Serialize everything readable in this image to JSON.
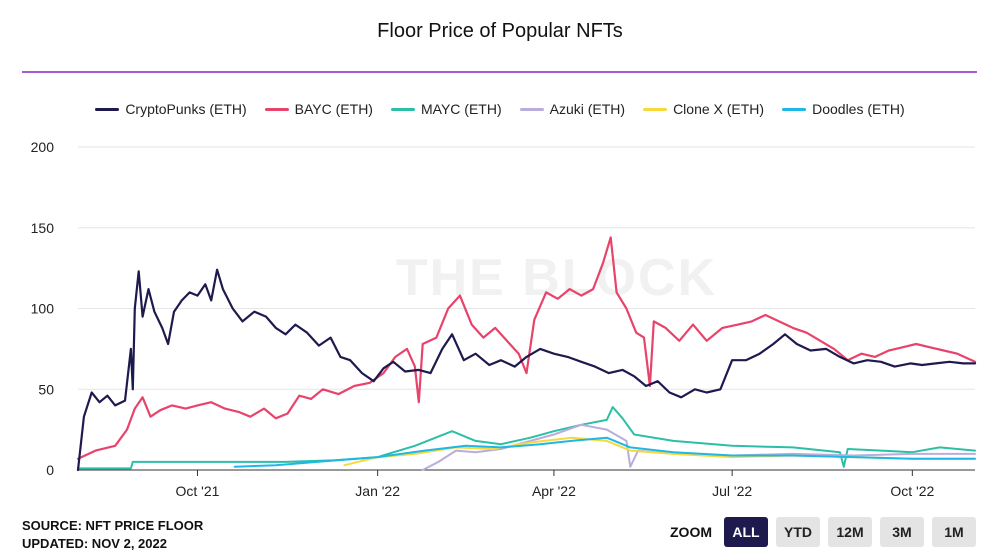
{
  "header": {
    "title": "Floor Price of Popular NFTs"
  },
  "footer": {
    "source": "SOURCE: NFT PRICE FLOOR",
    "updated": "UPDATED: NOV 2, 2022"
  },
  "zoom": {
    "label": "ZOOM",
    "buttons": [
      "ALL",
      "YTD",
      "12M",
      "3M",
      "1M"
    ],
    "active": "ALL"
  },
  "watermark": "THE BLOCK",
  "colors": {
    "accent_rule": "#a65bd3",
    "active_button": "#1e1a4d"
  },
  "chart_data": {
    "type": "line",
    "title": "Floor Price of Popular NFTs",
    "xlabel": "",
    "ylabel": "",
    "x_range": [
      "2021-08-01",
      "2022-11-02"
    ],
    "ylim": [
      0,
      200
    ],
    "y_ticks": [
      0,
      50,
      100,
      150,
      200
    ],
    "x_ticks": [
      {
        "date": "2021-10-01",
        "label": "Oct '21"
      },
      {
        "date": "2022-01-01",
        "label": "Jan '22"
      },
      {
        "date": "2022-04-01",
        "label": "Apr '22"
      },
      {
        "date": "2022-07-01",
        "label": "Jul '22"
      },
      {
        "date": "2022-10-01",
        "label": "Oct '22"
      }
    ],
    "grid": "horizontal",
    "legend_position": "top-center",
    "series": [
      {
        "name": "CryptoPunks (ETH)",
        "color": "#1e1a4d",
        "points": [
          [
            "2021-08-01",
            0
          ],
          [
            "2021-08-04",
            33
          ],
          [
            "2021-08-08",
            48
          ],
          [
            "2021-08-12",
            42
          ],
          [
            "2021-08-16",
            46
          ],
          [
            "2021-08-20",
            40
          ],
          [
            "2021-08-25",
            43
          ],
          [
            "2021-08-28",
            75
          ],
          [
            "2021-08-29",
            50
          ],
          [
            "2021-08-30",
            100
          ],
          [
            "2021-09-01",
            123
          ],
          [
            "2021-09-03",
            95
          ],
          [
            "2021-09-06",
            112
          ],
          [
            "2021-09-09",
            98
          ],
          [
            "2021-09-13",
            88
          ],
          [
            "2021-09-16",
            78
          ],
          [
            "2021-09-19",
            98
          ],
          [
            "2021-09-23",
            105
          ],
          [
            "2021-09-27",
            110
          ],
          [
            "2021-10-01",
            108
          ],
          [
            "2021-10-05",
            115
          ],
          [
            "2021-10-08",
            105
          ],
          [
            "2021-10-11",
            124
          ],
          [
            "2021-10-14",
            112
          ],
          [
            "2021-10-19",
            100
          ],
          [
            "2021-10-24",
            92
          ],
          [
            "2021-10-30",
            98
          ],
          [
            "2021-11-05",
            95
          ],
          [
            "2021-11-10",
            88
          ],
          [
            "2021-11-15",
            84
          ],
          [
            "2021-11-20",
            90
          ],
          [
            "2021-11-26",
            85
          ],
          [
            "2021-12-02",
            77
          ],
          [
            "2021-12-08",
            82
          ],
          [
            "2021-12-13",
            70
          ],
          [
            "2021-12-18",
            68
          ],
          [
            "2021-12-24",
            60
          ],
          [
            "2021-12-30",
            55
          ],
          [
            "2022-01-04",
            63
          ],
          [
            "2022-01-09",
            67
          ],
          [
            "2022-01-15",
            61
          ],
          [
            "2022-01-22",
            62
          ],
          [
            "2022-01-28",
            60
          ],
          [
            "2022-02-03",
            75
          ],
          [
            "2022-02-08",
            84
          ],
          [
            "2022-02-14",
            68
          ],
          [
            "2022-02-20",
            72
          ],
          [
            "2022-02-27",
            65
          ],
          [
            "2022-03-05",
            68
          ],
          [
            "2022-03-12",
            64
          ],
          [
            "2022-03-18",
            70
          ],
          [
            "2022-03-25",
            75
          ],
          [
            "2022-04-01",
            72
          ],
          [
            "2022-04-08",
            70
          ],
          [
            "2022-04-15",
            67
          ],
          [
            "2022-04-22",
            64
          ],
          [
            "2022-04-29",
            60
          ],
          [
            "2022-05-06",
            62
          ],
          [
            "2022-05-12",
            58
          ],
          [
            "2022-05-18",
            52
          ],
          [
            "2022-05-24",
            55
          ],
          [
            "2022-05-30",
            48
          ],
          [
            "2022-06-05",
            45
          ],
          [
            "2022-06-12",
            50
          ],
          [
            "2022-06-18",
            48
          ],
          [
            "2022-06-25",
            50
          ],
          [
            "2022-07-01",
            68
          ],
          [
            "2022-07-08",
            68
          ],
          [
            "2022-07-15",
            72
          ],
          [
            "2022-07-22",
            78
          ],
          [
            "2022-07-28",
            84
          ],
          [
            "2022-08-03",
            78
          ],
          [
            "2022-08-10",
            74
          ],
          [
            "2022-08-18",
            75
          ],
          [
            "2022-08-25",
            70
          ],
          [
            "2022-09-01",
            66
          ],
          [
            "2022-09-08",
            68
          ],
          [
            "2022-09-15",
            67
          ],
          [
            "2022-09-22",
            64
          ],
          [
            "2022-09-30",
            66
          ],
          [
            "2022-10-06",
            65
          ],
          [
            "2022-10-13",
            66
          ],
          [
            "2022-10-20",
            67
          ],
          [
            "2022-10-27",
            66
          ],
          [
            "2022-11-02",
            66
          ]
        ]
      },
      {
        "name": "BAYC (ETH)",
        "color": "#e8436a",
        "points": [
          [
            "2021-08-01",
            7
          ],
          [
            "2021-08-10",
            12
          ],
          [
            "2021-08-20",
            15
          ],
          [
            "2021-08-26",
            25
          ],
          [
            "2021-08-30",
            38
          ],
          [
            "2021-09-03",
            45
          ],
          [
            "2021-09-07",
            33
          ],
          [
            "2021-09-12",
            37
          ],
          [
            "2021-09-18",
            40
          ],
          [
            "2021-09-25",
            38
          ],
          [
            "2021-10-01",
            40
          ],
          [
            "2021-10-08",
            42
          ],
          [
            "2021-10-15",
            38
          ],
          [
            "2021-10-22",
            36
          ],
          [
            "2021-10-28",
            33
          ],
          [
            "2021-11-04",
            38
          ],
          [
            "2021-11-10",
            32
          ],
          [
            "2021-11-16",
            35
          ],
          [
            "2021-11-22",
            46
          ],
          [
            "2021-11-28",
            44
          ],
          [
            "2021-12-04",
            50
          ],
          [
            "2021-12-12",
            47
          ],
          [
            "2021-12-20",
            52
          ],
          [
            "2021-12-28",
            54
          ],
          [
            "2022-01-04",
            60
          ],
          [
            "2022-01-10",
            70
          ],
          [
            "2022-01-16",
            75
          ],
          [
            "2022-01-20",
            64
          ],
          [
            "2022-01-22",
            42
          ],
          [
            "2022-01-24",
            78
          ],
          [
            "2022-01-31",
            82
          ],
          [
            "2022-02-06",
            100
          ],
          [
            "2022-02-12",
            108
          ],
          [
            "2022-02-18",
            90
          ],
          [
            "2022-02-24",
            82
          ],
          [
            "2022-03-02",
            88
          ],
          [
            "2022-03-08",
            80
          ],
          [
            "2022-03-14",
            72
          ],
          [
            "2022-03-18",
            60
          ],
          [
            "2022-03-22",
            93
          ],
          [
            "2022-03-28",
            110
          ],
          [
            "2022-04-03",
            106
          ],
          [
            "2022-04-09",
            112
          ],
          [
            "2022-04-15",
            108
          ],
          [
            "2022-04-21",
            112
          ],
          [
            "2022-04-26",
            128
          ],
          [
            "2022-04-30",
            144
          ],
          [
            "2022-05-03",
            110
          ],
          [
            "2022-05-08",
            100
          ],
          [
            "2022-05-13",
            85
          ],
          [
            "2022-05-17",
            82
          ],
          [
            "2022-05-20",
            52
          ],
          [
            "2022-05-22",
            92
          ],
          [
            "2022-05-28",
            88
          ],
          [
            "2022-06-04",
            80
          ],
          [
            "2022-06-11",
            90
          ],
          [
            "2022-06-18",
            80
          ],
          [
            "2022-06-26",
            88
          ],
          [
            "2022-07-04",
            90
          ],
          [
            "2022-07-11",
            92
          ],
          [
            "2022-07-18",
            96
          ],
          [
            "2022-07-25",
            92
          ],
          [
            "2022-08-01",
            88
          ],
          [
            "2022-08-08",
            85
          ],
          [
            "2022-08-15",
            80
          ],
          [
            "2022-08-22",
            75
          ],
          [
            "2022-08-29",
            68
          ],
          [
            "2022-09-05",
            72
          ],
          [
            "2022-09-12",
            70
          ],
          [
            "2022-09-19",
            74
          ],
          [
            "2022-09-26",
            76
          ],
          [
            "2022-10-03",
            78
          ],
          [
            "2022-10-10",
            76
          ],
          [
            "2022-10-17",
            74
          ],
          [
            "2022-10-24",
            72
          ],
          [
            "2022-11-02",
            67
          ]
        ]
      },
      {
        "name": "MAYC (ETH)",
        "color": "#2bbfa6",
        "points": [
          [
            "2021-08-01",
            1
          ],
          [
            "2021-08-28",
            1
          ],
          [
            "2021-08-29",
            5
          ],
          [
            "2021-09-30",
            5
          ],
          [
            "2021-11-15",
            5
          ],
          [
            "2021-12-10",
            6
          ],
          [
            "2022-01-01",
            8
          ],
          [
            "2022-01-20",
            15
          ],
          [
            "2022-02-08",
            24
          ],
          [
            "2022-02-20",
            18
          ],
          [
            "2022-03-05",
            16
          ],
          [
            "2022-03-20",
            20
          ],
          [
            "2022-04-01",
            24
          ],
          [
            "2022-04-15",
            28
          ],
          [
            "2022-04-28",
            31
          ],
          [
            "2022-05-01",
            39
          ],
          [
            "2022-05-06",
            32
          ],
          [
            "2022-05-12",
            22
          ],
          [
            "2022-06-01",
            18
          ],
          [
            "2022-07-01",
            15
          ],
          [
            "2022-08-01",
            14
          ],
          [
            "2022-08-25",
            11
          ],
          [
            "2022-08-27",
            2
          ],
          [
            "2022-08-29",
            13
          ],
          [
            "2022-09-15",
            12
          ],
          [
            "2022-10-01",
            11
          ],
          [
            "2022-10-15",
            14
          ],
          [
            "2022-11-02",
            12
          ]
        ]
      },
      {
        "name": "Azuki (ETH)",
        "color": "#b9addb",
        "points": [
          [
            "2022-01-24",
            0
          ],
          [
            "2022-02-01",
            5
          ],
          [
            "2022-02-10",
            12
          ],
          [
            "2022-02-20",
            11
          ],
          [
            "2022-03-05",
            13
          ],
          [
            "2022-03-20",
            18
          ],
          [
            "2022-04-01",
            22
          ],
          [
            "2022-04-15",
            28
          ],
          [
            "2022-04-28",
            25
          ],
          [
            "2022-05-08",
            18
          ],
          [
            "2022-05-10",
            2
          ],
          [
            "2022-05-14",
            12
          ],
          [
            "2022-06-01",
            10
          ],
          [
            "2022-07-01",
            9
          ],
          [
            "2022-08-01",
            10
          ],
          [
            "2022-09-01",
            9
          ],
          [
            "2022-10-01",
            10
          ],
          [
            "2022-11-02",
            10
          ]
        ]
      },
      {
        "name": "Clone X (ETH)",
        "color": "#f7d93e",
        "points": [
          [
            "2021-12-15",
            3
          ],
          [
            "2022-01-01",
            8
          ],
          [
            "2022-01-20",
            10
          ],
          [
            "2022-02-10",
            14
          ],
          [
            "2022-03-01",
            13
          ],
          [
            "2022-03-20",
            17
          ],
          [
            "2022-04-10",
            20
          ],
          [
            "2022-04-28",
            18
          ],
          [
            "2022-05-10",
            12
          ],
          [
            "2022-06-01",
            10
          ],
          [
            "2022-07-01",
            8
          ],
          [
            "2022-08-01",
            9
          ],
          [
            "2022-09-01",
            8
          ],
          [
            "2022-10-01",
            7
          ],
          [
            "2022-11-02",
            7
          ]
        ]
      },
      {
        "name": "Doodles (ETH)",
        "color": "#1fb7e6",
        "points": [
          [
            "2021-10-20",
            2
          ],
          [
            "2021-11-10",
            3
          ],
          [
            "2021-12-01",
            5
          ],
          [
            "2022-01-01",
            8
          ],
          [
            "2022-01-25",
            12
          ],
          [
            "2022-02-15",
            15
          ],
          [
            "2022-03-05",
            14
          ],
          [
            "2022-03-25",
            16
          ],
          [
            "2022-04-10",
            18
          ],
          [
            "2022-04-28",
            20
          ],
          [
            "2022-05-10",
            14
          ],
          [
            "2022-06-01",
            11
          ],
          [
            "2022-07-01",
            9
          ],
          [
            "2022-08-01",
            9
          ],
          [
            "2022-09-01",
            8
          ],
          [
            "2022-10-01",
            7
          ],
          [
            "2022-11-02",
            7
          ]
        ]
      }
    ]
  }
}
